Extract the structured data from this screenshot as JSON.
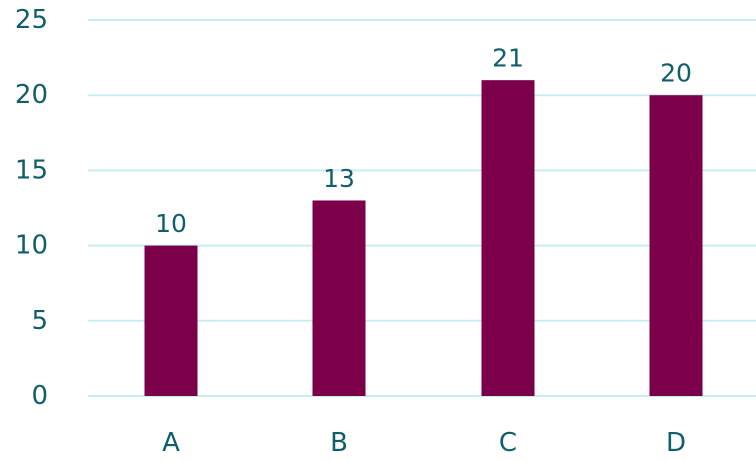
{
  "colors": {
    "bar": "#7b0049",
    "text": "#0f5f6b",
    "grid": "#c8eef3",
    "background": "#ffffff"
  },
  "chart_data": {
    "type": "bar",
    "categories": [
      "A",
      "B",
      "C",
      "D"
    ],
    "values": [
      10,
      13,
      21,
      20
    ],
    "data_labels": [
      "10",
      "13",
      "21",
      "20"
    ],
    "y_ticks": [
      "0",
      "5",
      "10",
      "15",
      "20",
      "25"
    ],
    "ylim": [
      0,
      25
    ],
    "grid": true,
    "legend": "none"
  }
}
